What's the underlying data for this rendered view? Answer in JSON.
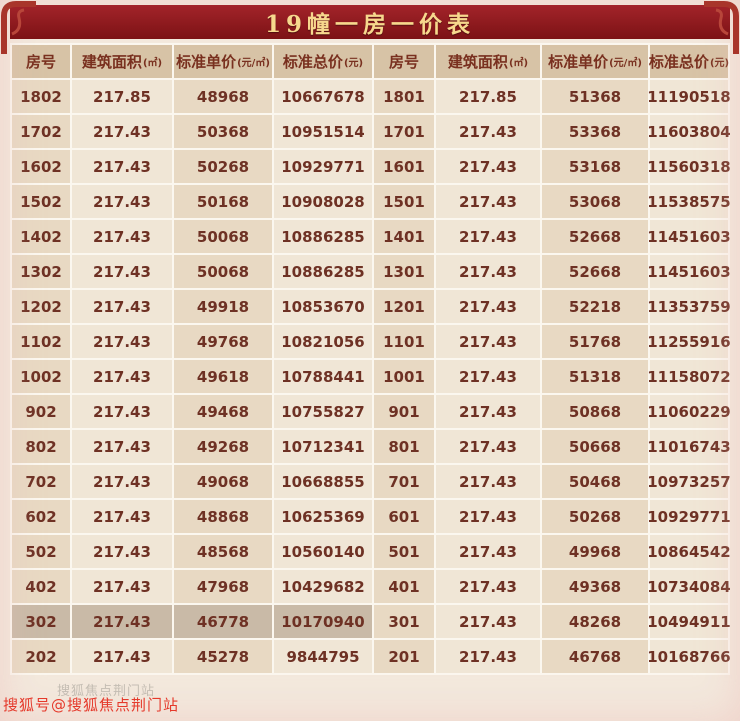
{
  "title": "19幢一房一价表",
  "watermark": "搜狐号@搜狐焦点荆门站",
  "watermark_faint": "搜狐焦点荆门站",
  "colors": {
    "title_bg": "#8e181b",
    "title_text": "#f7d88d",
    "header_bg": "#d7c3a6",
    "cell_dark": "#e8d9c3",
    "cell_light": "#f0e6d6",
    "highlight_bg": "#c9baa7",
    "cell_text": "#6e3124",
    "page_bg": "#f3e9dd",
    "watermark_red": "#e5392b"
  },
  "table": {
    "headers": [
      {
        "label": "房号",
        "unit": ""
      },
      {
        "label": "建筑面积",
        "unit": "(㎡)"
      },
      {
        "label": "标准单价",
        "unit": "(元/㎡)"
      },
      {
        "label": "标准总价",
        "unit": "(元)"
      },
      {
        "label": "房号",
        "unit": ""
      },
      {
        "label": "建筑面积",
        "unit": "(㎡)"
      },
      {
        "label": "标准单价",
        "unit": "(元/㎡)"
      },
      {
        "label": "标准总价",
        "unit": "(元)"
      }
    ],
    "highlight_row": 15,
    "rows": [
      [
        "1802",
        "217.85",
        "48968",
        "10667678",
        "1801",
        "217.85",
        "51368",
        "11190518"
      ],
      [
        "1702",
        "217.43",
        "50368",
        "10951514",
        "1701",
        "217.43",
        "53368",
        "11603804"
      ],
      [
        "1602",
        "217.43",
        "50268",
        "10929771",
        "1601",
        "217.43",
        "53168",
        "11560318"
      ],
      [
        "1502",
        "217.43",
        "50168",
        "10908028",
        "1501",
        "217.43",
        "53068",
        "11538575"
      ],
      [
        "1402",
        "217.43",
        "50068",
        "10886285",
        "1401",
        "217.43",
        "52668",
        "11451603"
      ],
      [
        "1302",
        "217.43",
        "50068",
        "10886285",
        "1301",
        "217.43",
        "52668",
        "11451603"
      ],
      [
        "1202",
        "217.43",
        "49918",
        "10853670",
        "1201",
        "217.43",
        "52218",
        "11353759"
      ],
      [
        "1102",
        "217.43",
        "49768",
        "10821056",
        "1101",
        "217.43",
        "51768",
        "11255916"
      ],
      [
        "1002",
        "217.43",
        "49618",
        "10788441",
        "1001",
        "217.43",
        "51318",
        "11158072"
      ],
      [
        "902",
        "217.43",
        "49468",
        "10755827",
        "901",
        "217.43",
        "50868",
        "11060229"
      ],
      [
        "802",
        "217.43",
        "49268",
        "10712341",
        "801",
        "217.43",
        "50668",
        "11016743"
      ],
      [
        "702",
        "217.43",
        "49068",
        "10668855",
        "701",
        "217.43",
        "50468",
        "10973257"
      ],
      [
        "602",
        "217.43",
        "48868",
        "10625369",
        "601",
        "217.43",
        "50268",
        "10929771"
      ],
      [
        "502",
        "217.43",
        "48568",
        "10560140",
        "501",
        "217.43",
        "49968",
        "10864542"
      ],
      [
        "402",
        "217.43",
        "47968",
        "10429682",
        "401",
        "217.43",
        "49368",
        "10734084"
      ],
      [
        "302",
        "217.43",
        "46778",
        "10170940",
        "301",
        "217.43",
        "48268",
        "10494911"
      ],
      [
        "202",
        "217.43",
        "45278",
        "9844795",
        "201",
        "217.43",
        "46768",
        "10168766"
      ]
    ]
  }
}
